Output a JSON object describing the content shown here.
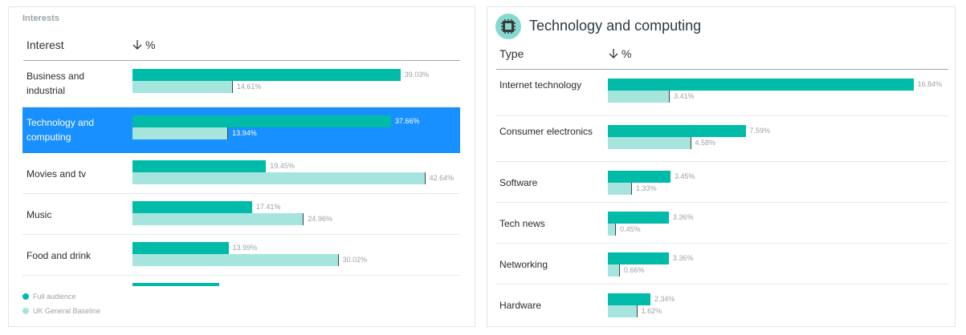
{
  "colors": {
    "full_audience": "#00bba8",
    "baseline": "#a6e5de",
    "selected_row": "#1890ff"
  },
  "interests_panel": {
    "section_title": "Interests",
    "col_interest": "Interest",
    "col_percent": "%",
    "sort_icon": "arrow-down-icon",
    "rows": [
      {
        "label": "Business and industrial",
        "full": 39.03,
        "baseline": 14.61,
        "full_label": "39.03%",
        "baseline_label": "14.61%",
        "selected": false
      },
      {
        "label": "Technology and computing",
        "full": 37.66,
        "baseline": 13.94,
        "full_label": "37.66%",
        "baseline_label": "13.94%",
        "selected": true
      },
      {
        "label": "Movies and tv",
        "full": 19.45,
        "baseline": 42.64,
        "full_label": "19.45%",
        "baseline_label": "42.64%",
        "selected": false
      },
      {
        "label": "Music",
        "full": 17.41,
        "baseline": 24.96,
        "full_label": "17.41%",
        "baseline_label": "24.96%",
        "selected": false
      },
      {
        "label": "Food and drink",
        "full": 13.99,
        "baseline": 30.02,
        "full_label": "13.99%",
        "baseline_label": "30.02%",
        "selected": false
      }
    ],
    "partial_row_full": 12.6,
    "legend": {
      "full": "Full audience",
      "baseline": "UK General Baseline"
    }
  },
  "detail_panel": {
    "title": "Technology and computing",
    "icon": "chip-icon",
    "col_type": "Type",
    "col_percent": "%",
    "sort_icon": "arrow-down-icon",
    "rows": [
      {
        "label": "Internet technology",
        "full": 16.84,
        "baseline": 3.41,
        "full_label": "16.84%",
        "baseline_label": "3.41%"
      },
      {
        "label": "Consumer electronics",
        "full": 7.59,
        "baseline": 4.58,
        "full_label": "7.59%",
        "baseline_label": "4.58%"
      },
      {
        "label": "Software",
        "full": 3.45,
        "baseline": 1.33,
        "full_label": "3.45%",
        "baseline_label": "1.33%"
      },
      {
        "label": "Tech news",
        "full": 3.36,
        "baseline": 0.45,
        "full_label": "3.36%",
        "baseline_label": "0.45%"
      },
      {
        "label": "Networking",
        "full": 3.36,
        "baseline": 0.66,
        "full_label": "3.36%",
        "baseline_label": "0.66%"
      },
      {
        "label": "Hardware",
        "full": 2.34,
        "baseline": 1.62,
        "full_label": "2.34%",
        "baseline_label": "1.62%"
      }
    ]
  }
}
